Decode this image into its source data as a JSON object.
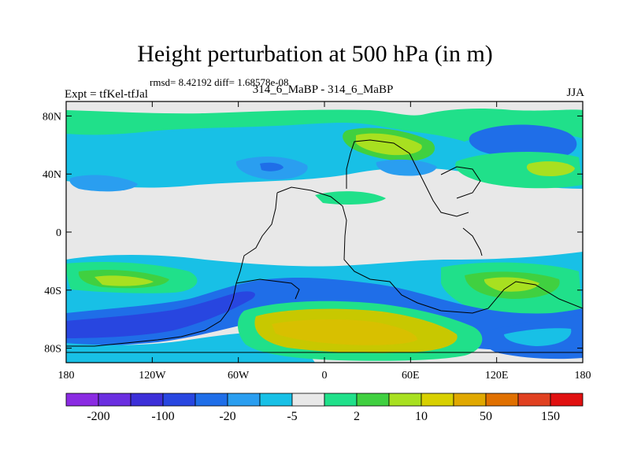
{
  "title": "Height perturbation at 500 hPa (in m)",
  "stats_line": "rmsd= 8.42192 diff= 1.68578e-08",
  "left_string": "Expt = tfKel-tfJal",
  "center_string": "314_6_MaBP - 314_6_MaBP",
  "right_string": "JJA",
  "map": {
    "lon_ticks": [
      {
        "value": -180,
        "label": "180"
      },
      {
        "value": -120,
        "label": "120W"
      },
      {
        "value": -60,
        "label": "60W"
      },
      {
        "value": 0,
        "label": "0"
      },
      {
        "value": 60,
        "label": "60E"
      },
      {
        "value": 120,
        "label": "120E"
      },
      {
        "value": 180,
        "label": "180"
      }
    ],
    "lat_ticks": [
      {
        "value": 80,
        "label": "80N"
      },
      {
        "value": 40,
        "label": "40N"
      },
      {
        "value": 0,
        "label": "0"
      },
      {
        "value": -40,
        "label": "40S"
      },
      {
        "value": -80,
        "label": "80S"
      }
    ],
    "lon_range": [
      -180,
      180
    ],
    "lat_range": [
      -90,
      90
    ]
  },
  "colorbar": {
    "colors": [
      "#8a2be2",
      "#6a2ee0",
      "#3c2fd8",
      "#2846e0",
      "#1f6ee8",
      "#2a9ef0",
      "#18c0e6",
      "#e8e8e8",
      "#20e08a",
      "#40d040",
      "#a8e020",
      "#d8d000",
      "#e0a800",
      "#e07000",
      "#e04020",
      "#e01010"
    ],
    "labels": [
      {
        "index": 1,
        "text": "-200"
      },
      {
        "index": 3,
        "text": "-100"
      },
      {
        "index": 5,
        "text": "-20"
      },
      {
        "index": 7,
        "text": "-5"
      },
      {
        "index": 9,
        "text": "2"
      },
      {
        "index": 11,
        "text": "10"
      },
      {
        "index": 13,
        "text": "50"
      },
      {
        "index": 15,
        "text": "150"
      }
    ]
  },
  "field_colors": {
    "background": "#e8e8e8",
    "light_blue": "#18c0e6",
    "mid_blue": "#2a9ef0",
    "blue": "#1f6ee8",
    "teal_green": "#20e08a",
    "green": "#40d040",
    "yellow_green": "#a8e020",
    "olive": "#c8c800"
  }
}
